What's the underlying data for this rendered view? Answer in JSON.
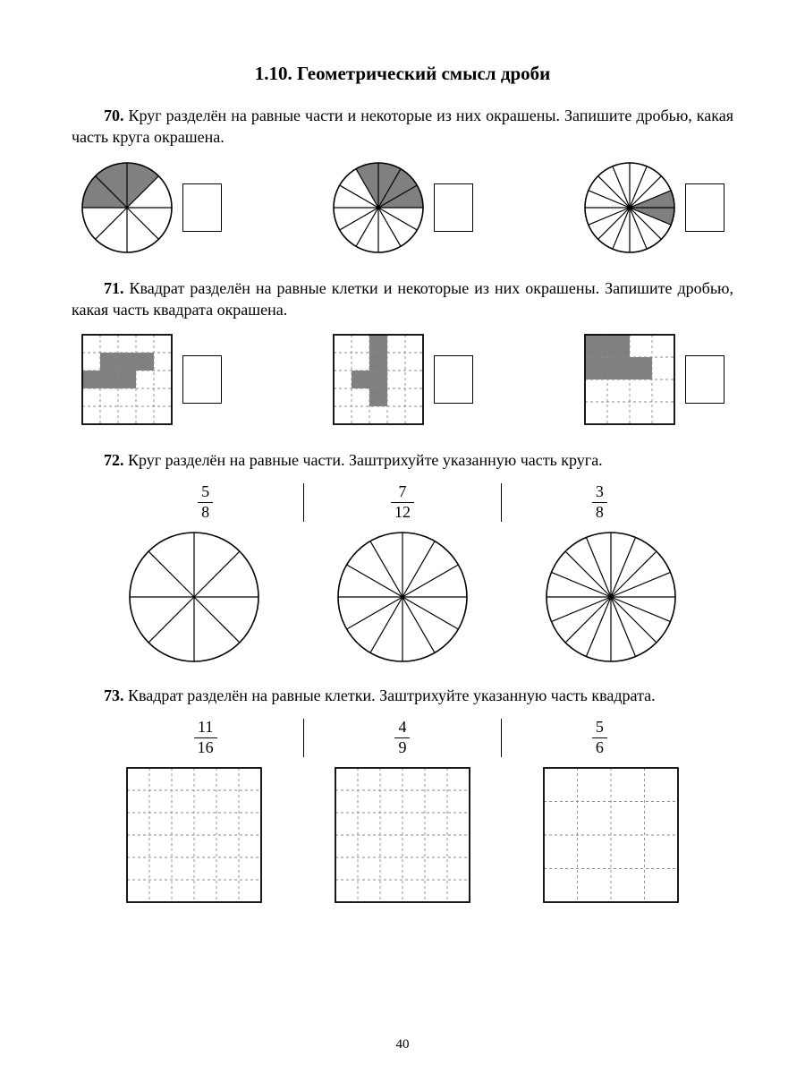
{
  "section": {
    "title": "1.10. Геометрический смысл дроби"
  },
  "pageNumber": "40",
  "colors": {
    "shade": "#808080",
    "stroke": "#000000",
    "gridDash": "#8a8a8a"
  },
  "p70": {
    "num": "70.",
    "text": "Круг разделён на равные части и некоторые из них окрашены. Запишите дробью, какая часть круга окрашена.",
    "circles": [
      {
        "sectors": 8,
        "startDeg": -90,
        "shaded": [
          0,
          6,
          7
        ],
        "r": 50
      },
      {
        "sectors": 12,
        "startDeg": -90,
        "shaded": [
          0,
          1,
          2,
          11
        ],
        "r": 50
      },
      {
        "sectors": 16,
        "startDeg": -90,
        "shaded": [
          3,
          4
        ],
        "r": 50
      }
    ]
  },
  "p71": {
    "num": "71.",
    "text": "Квадрат разделён на равные клетки и некоторые из них окрашены. Запишите дробью, какая часть квадрата окрашена.",
    "grids": [
      {
        "n": 5,
        "size": 100,
        "shaded": [
          [
            1,
            1
          ],
          [
            1,
            2
          ],
          [
            1,
            3
          ],
          [
            2,
            0
          ],
          [
            2,
            1
          ],
          [
            2,
            2
          ]
        ]
      },
      {
        "n": 5,
        "size": 100,
        "shaded": [
          [
            0,
            2
          ],
          [
            1,
            2
          ],
          [
            2,
            1
          ],
          [
            2,
            2
          ],
          [
            3,
            2
          ]
        ]
      },
      {
        "n": 4,
        "size": 100,
        "shaded": [
          [
            0,
            0
          ],
          [
            0,
            1
          ],
          [
            1,
            0
          ],
          [
            1,
            1
          ],
          [
            1,
            2
          ]
        ]
      }
    ]
  },
  "p72": {
    "num": "72.",
    "text": "Круг разделён на равные части. Заштрихуйте указанную часть круга.",
    "fractions": [
      {
        "num": "5",
        "den": "8"
      },
      {
        "num": "7",
        "den": "12"
      },
      {
        "num": "3",
        "den": "8"
      }
    ],
    "circles": [
      {
        "sectors": 8,
        "r": 72
      },
      {
        "sectors": 12,
        "r": 72
      },
      {
        "sectors": 16,
        "r": 72
      }
    ]
  },
  "p73": {
    "num": "73.",
    "text": "Квадрат разделён на равные клетки. Заштрихуйте указанную часть квадрата.",
    "fractions": [
      {
        "num": "11",
        "den": "16"
      },
      {
        "num": "4",
        "den": "9"
      },
      {
        "num": "5",
        "den": "6"
      }
    ],
    "grids": [
      {
        "n": 6,
        "size": 150
      },
      {
        "n": 6,
        "size": 150
      },
      {
        "n": 4,
        "size": 150
      }
    ]
  }
}
